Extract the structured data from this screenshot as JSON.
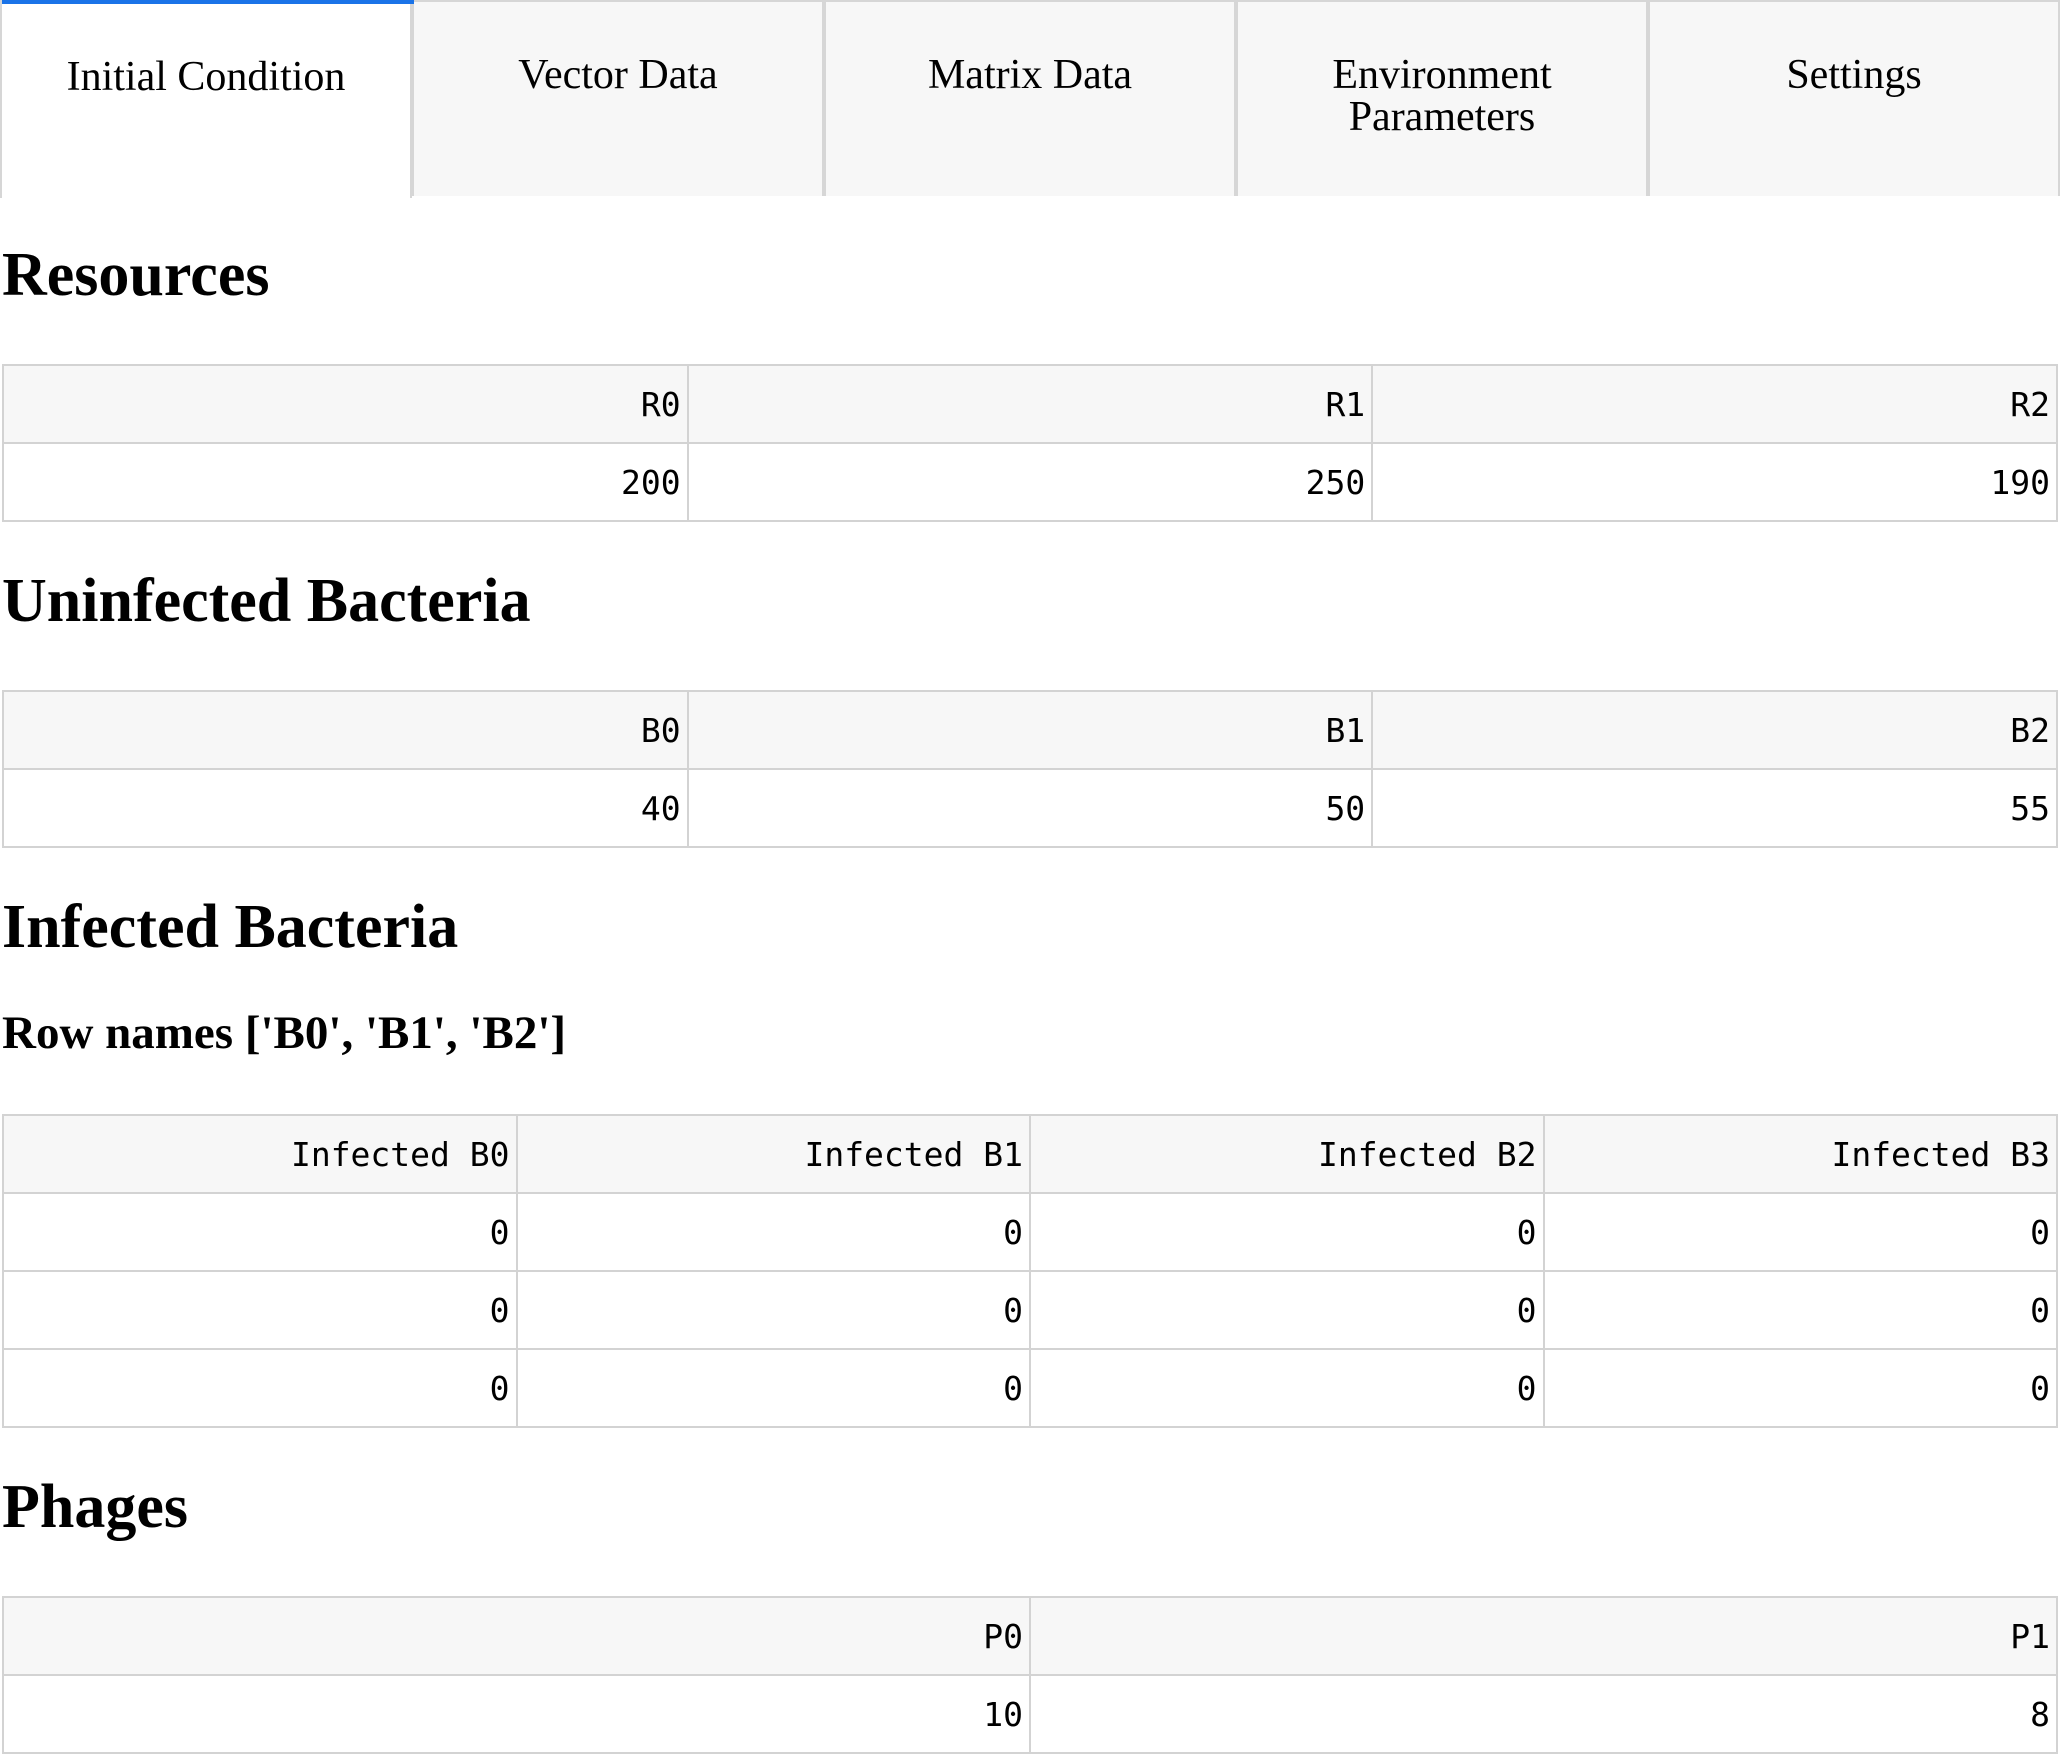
{
  "tabs": [
    {
      "label": "Initial Condition",
      "active": true
    },
    {
      "label": "Vector Data",
      "active": false
    },
    {
      "label": "Matrix Data",
      "active": false
    },
    {
      "label": "Environment\nParameters",
      "active": false
    },
    {
      "label": "Settings",
      "active": false
    }
  ],
  "colors": {
    "active_tab_indicator": "#1a73e8",
    "tab_background": "#f7f7f7",
    "header_background": "#f7f7f7",
    "border": "#d3d3d3"
  },
  "resources": {
    "title": "Resources",
    "columns": [
      "R0",
      "R1",
      "R2"
    ],
    "rows": [
      [
        "200",
        "250",
        "190"
      ]
    ]
  },
  "uninfected": {
    "title": "Uninfected Bacteria",
    "columns": [
      "B0",
      "B1",
      "B2"
    ],
    "rows": [
      [
        "40",
        "50",
        "55"
      ]
    ]
  },
  "infected": {
    "title": "Infected Bacteria",
    "subtitle": "Row names ['B0', 'B1', 'B2']",
    "columns": [
      "Infected B0",
      "Infected B1",
      "Infected B2",
      "Infected B3"
    ],
    "rows": [
      [
        "0",
        "0",
        "0",
        "0"
      ],
      [
        "0",
        "0",
        "0",
        "0"
      ],
      [
        "0",
        "0",
        "0",
        "0"
      ]
    ]
  },
  "phages": {
    "title": "Phages",
    "columns": [
      "P0",
      "P1"
    ],
    "rows": [
      [
        "10",
        "8"
      ]
    ]
  }
}
